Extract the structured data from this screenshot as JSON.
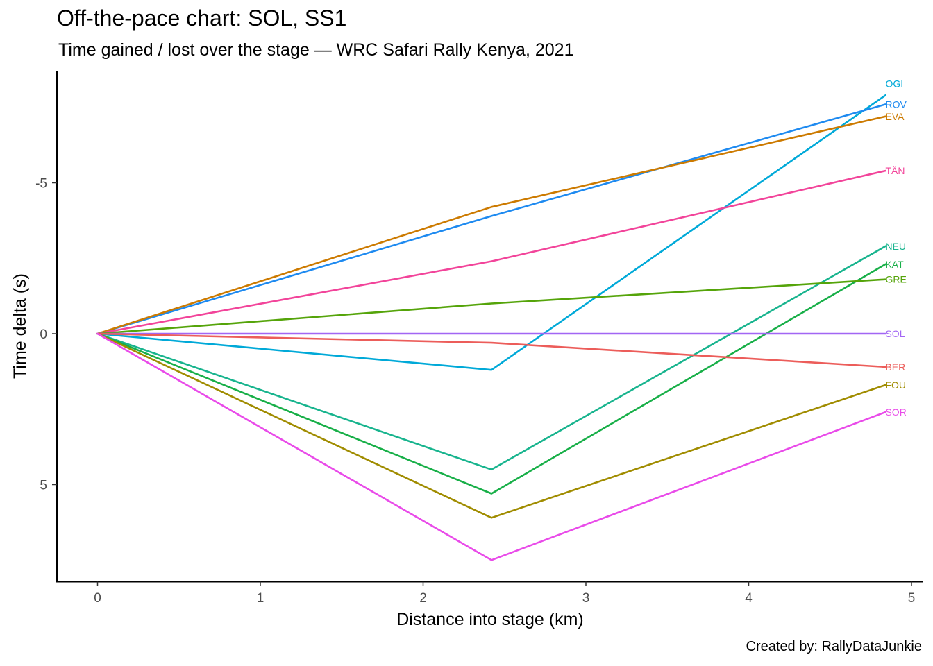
{
  "title": "Off-the-pace chart: SOL, SS1",
  "subtitle": "Time gained / lost over the stage — WRC Safari Rally Kenya, 2021",
  "caption": "Created by: RallyDataJunkie",
  "chart_data": {
    "type": "line",
    "title": "Off-the-pace chart: SOL, SS1",
    "subtitle": "Time gained / lost over the stage — WRC Safari Rally Kenya, 2021",
    "xlabel": "Distance into stage (km)",
    "ylabel": "Time delta (s)",
    "xlim": [
      -0.25,
      5.0
    ],
    "ylim": [
      8.3,
      -8.6
    ],
    "y_reversed": true,
    "xticks": [
      0,
      1,
      2,
      3,
      4,
      5
    ],
    "yticks": [
      -5,
      0,
      5
    ],
    "grid": false,
    "legend": "none",
    "series_labels": "direct labels at line ends",
    "x": [
      0,
      2.42,
      4.84
    ],
    "series": [
      {
        "name": "OGI",
        "color": "#00A9D8",
        "values": [
          0,
          1.2,
          -7.9
        ]
      },
      {
        "name": "ROV",
        "color": "#1E8AF0",
        "values": [
          0,
          -3.9,
          -7.6
        ]
      },
      {
        "name": "EVA",
        "color": "#CC7A00",
        "values": [
          0,
          -4.2,
          -7.2
        ]
      },
      {
        "name": "TÄN",
        "color": "#F2449A",
        "values": [
          0,
          -2.4,
          -5.4
        ]
      },
      {
        "name": "NEU",
        "color": "#18B48E",
        "values": [
          0,
          4.5,
          -2.9
        ]
      },
      {
        "name": "KAT",
        "color": "#18AF48",
        "values": [
          0,
          5.3,
          -2.3
        ]
      },
      {
        "name": "GRE",
        "color": "#55A40A",
        "values": [
          0,
          -1.0,
          -1.8
        ]
      },
      {
        "name": "SOL",
        "color": "#A266F4",
        "values": [
          0,
          0,
          0
        ]
      },
      {
        "name": "BER",
        "color": "#EC5D5A",
        "values": [
          0,
          0.3,
          1.1
        ]
      },
      {
        "name": "FOU",
        "color": "#A08C00",
        "values": [
          0,
          6.1,
          1.7
        ]
      },
      {
        "name": "SOR",
        "color": "#E94BE9",
        "values": [
          0,
          7.5,
          2.6
        ]
      }
    ]
  }
}
